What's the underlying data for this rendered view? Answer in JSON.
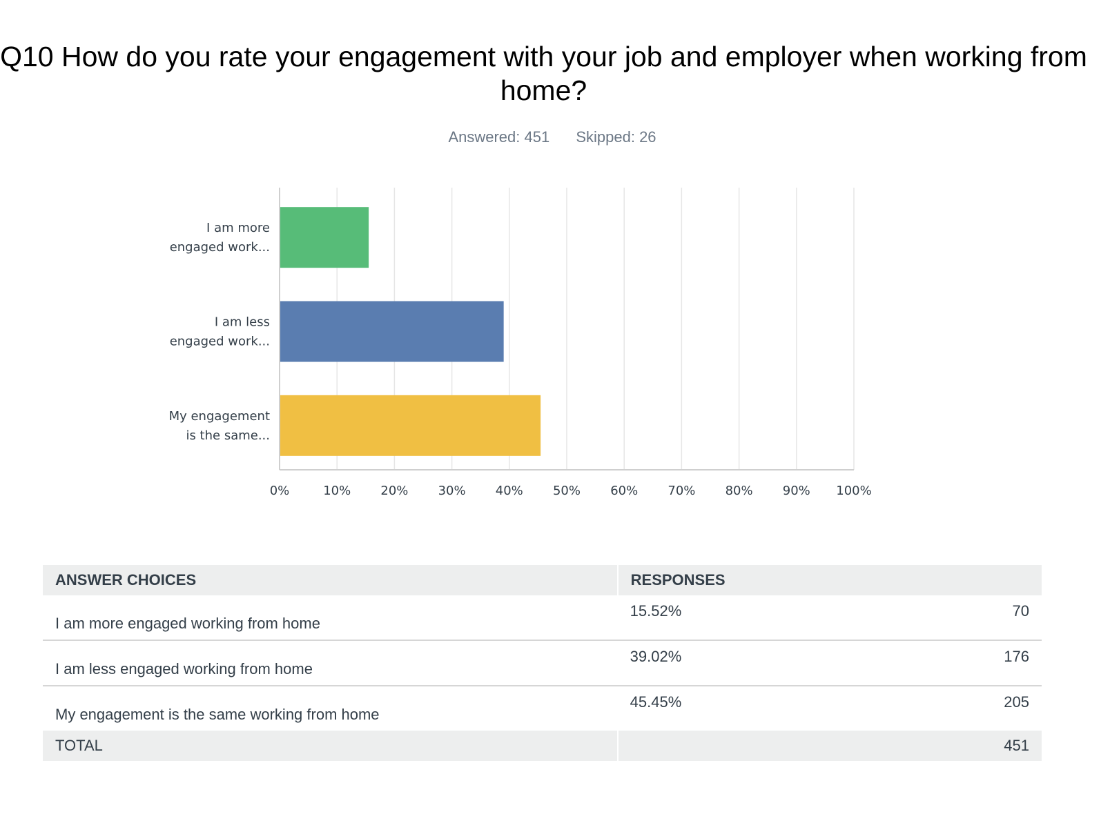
{
  "title": "Q10 How do you rate your engagement with your job and employer when working from home?",
  "answered": "Answered: 451",
  "skipped": "Skipped: 26",
  "chart_data": {
    "type": "bar",
    "orientation": "horizontal",
    "categories": [
      "I am more engaged work...",
      "I am less engaged work...",
      "My engagement is the same..."
    ],
    "category_lines": [
      [
        "I am more",
        "engaged work..."
      ],
      [
        "I am less",
        "engaged work..."
      ],
      [
        "My engagement",
        "is the same..."
      ]
    ],
    "values": [
      15.52,
      39.02,
      45.45
    ],
    "colors": [
      "#57bc78",
      "#5a7db0",
      "#f0bf43"
    ],
    "xlim": [
      0,
      100
    ],
    "xticks": [
      "0%",
      "10%",
      "20%",
      "30%",
      "40%",
      "50%",
      "60%",
      "70%",
      "80%",
      "90%",
      "100%"
    ],
    "grid": true
  },
  "table": {
    "headers": [
      "ANSWER CHOICES",
      "RESPONSES"
    ],
    "rows": [
      {
        "choice": "I am more engaged working from home",
        "percent": "15.52%",
        "count": "70"
      },
      {
        "choice": "I am less engaged working from home",
        "percent": "39.02%",
        "count": "176"
      },
      {
        "choice": "My engagement is the same working from home",
        "percent": "45.45%",
        "count": "205"
      }
    ],
    "total_label": "TOTAL",
    "total": "451"
  }
}
